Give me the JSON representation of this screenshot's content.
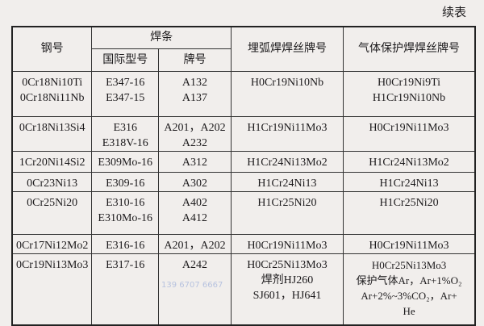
{
  "continued_label": "续表",
  "headers": {
    "steel_grade": "钢号",
    "electrode": "焊条",
    "intl_model": "国际型号",
    "brand": "牌号",
    "saw_wire": "埋弧焊焊丝牌号",
    "gas_wire": "气体保护焊焊丝牌号"
  },
  "rows": [
    {
      "steel": [
        "0Cr18Ni10Ti",
        "0Cr18Ni11Nb"
      ],
      "intl": [
        "E347-16",
        "E347-15"
      ],
      "brand": [
        "A132",
        "A137"
      ],
      "saw": [
        "H0Cr19Ni10Nb"
      ],
      "gas": [
        "H0Cr19Ni9Ti",
        "H1Cr19Ni10Nb"
      ]
    },
    {
      "steel": [
        "0Cr18Ni13Si4"
      ],
      "intl": [
        "E316",
        "E318V-16"
      ],
      "brand": [
        "A201，A202",
        "A232"
      ],
      "saw": [
        "H1Cr19Ni11Mo3"
      ],
      "gas": [
        "H0Cr19Ni11Mo3"
      ]
    },
    {
      "steel": [
        "1Cr20Ni14Si2"
      ],
      "intl": [
        "E309Mo-16"
      ],
      "brand": [
        "A312"
      ],
      "saw": [
        "H1Cr24Ni13Mo2"
      ],
      "gas": [
        "H1Cr24Ni13Mo2"
      ]
    },
    {
      "steel": [
        "0Cr23Ni13"
      ],
      "intl": [
        "E309-16"
      ],
      "brand": [
        "A302"
      ],
      "saw": [
        "H1Cr24Ni13"
      ],
      "gas": [
        "H1Cr24Ni13"
      ]
    },
    {
      "steel": [
        "0Cr25Ni20"
      ],
      "intl": [
        "E310-16",
        "E310Mo-16"
      ],
      "brand": [
        "A402",
        "A412"
      ],
      "saw": [
        "H1Cr25Ni20"
      ],
      "gas": [
        "H1Cr25Ni20"
      ]
    },
    {
      "steel": [
        "0Cr17Ni12Mo2"
      ],
      "intl": [
        "E316-16"
      ],
      "brand": [
        "A201，A202"
      ],
      "saw": [
        "H0Cr19Ni11Mo3"
      ],
      "gas": [
        "H0Cr19Ni11Mo3"
      ]
    },
    {
      "steel": [
        "0Cr19Ni13Mo3"
      ],
      "intl": [
        "E317-16"
      ],
      "brand": [
        "A242"
      ],
      "saw": [
        "H0Cr25Ni13Mo3",
        "焊剂HJ260",
        "SJ601，HJ641"
      ],
      "gas": [
        "H0Cr25Ni13Mo3",
        "保护气体Ar，Ar+1%O₂",
        "Ar+2%~3%CO₂，Ar+",
        "He"
      ]
    }
  ],
  "watermark": {
    "phone": "139 6707 6667"
  }
}
